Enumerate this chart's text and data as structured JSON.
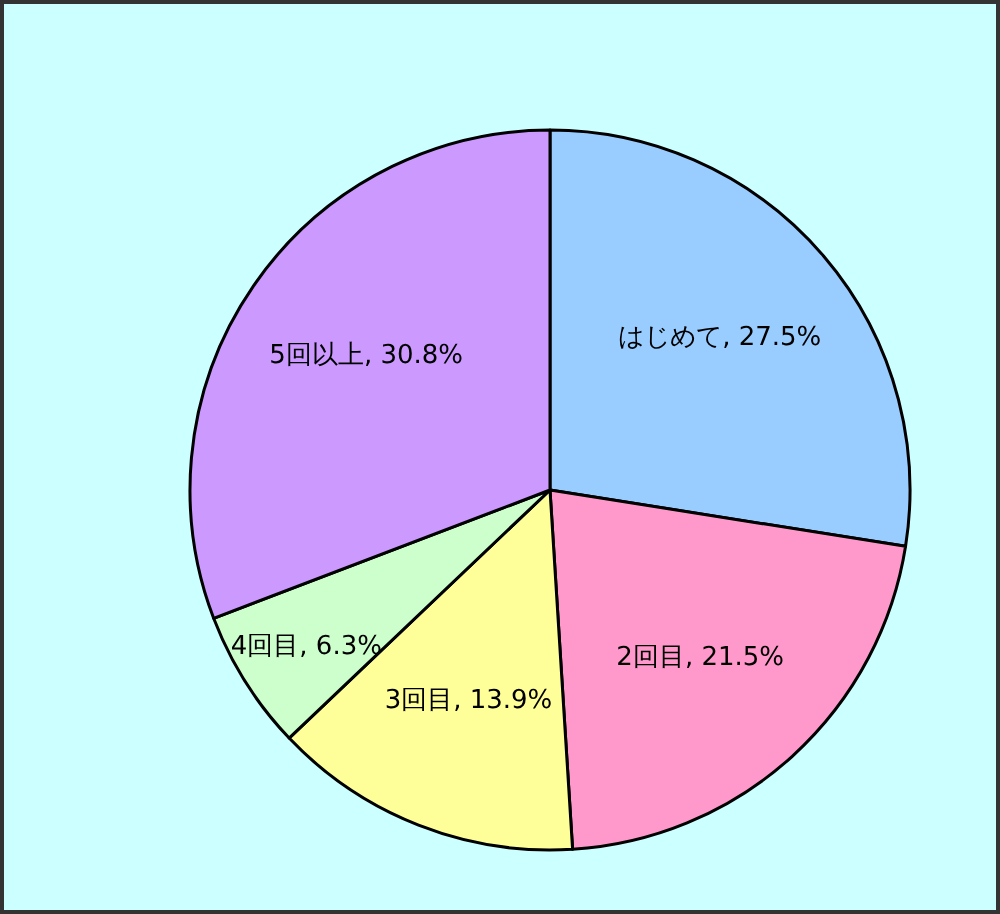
{
  "chart_data": {
    "type": "pie",
    "categories": [
      "はじめて",
      "2回目",
      "3回目",
      "4回目",
      "5回以上"
    ],
    "values": [
      27.5,
      21.5,
      13.9,
      6.3,
      30.8
    ],
    "value_labels": [
      "27.5%",
      "21.5%",
      "13.9%",
      "6.3%",
      "30.8%"
    ],
    "colors": [
      "#99ccff",
      "#ff99cc",
      "#ffff99",
      "#ccffcc",
      "#cc99ff"
    ]
  }
}
